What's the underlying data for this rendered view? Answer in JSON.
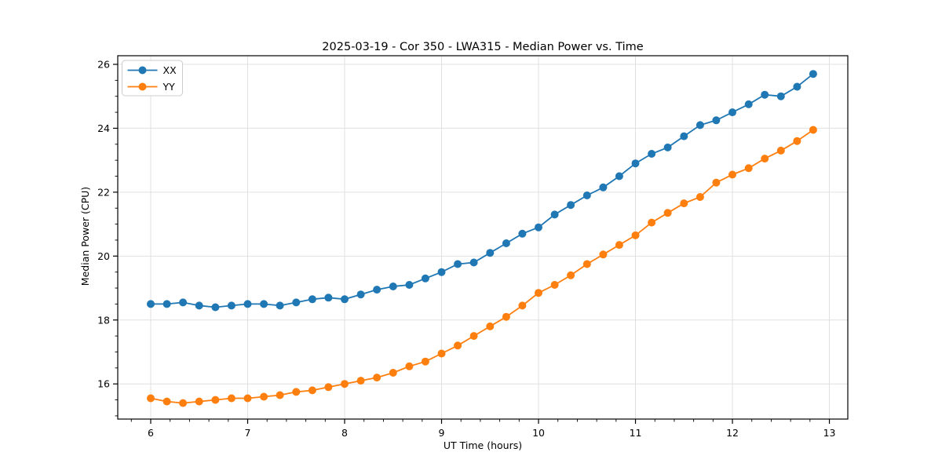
{
  "chart_data": {
    "type": "line",
    "title": "2025-03-19 - Cor 350 - LWA315 - Median Power vs. Time",
    "xlabel": "UT Time (hours)",
    "ylabel": "Median Power (CPU)",
    "xlim": [
      5.66,
      13.19
    ],
    "ylim": [
      14.9,
      26.27
    ],
    "x_major_ticks": [
      6,
      7,
      8,
      9,
      10,
      11,
      12,
      13
    ],
    "y_major_ticks": [
      16,
      18,
      20,
      22,
      24,
      26
    ],
    "x_minor_step": 0.2,
    "y_minor_step": 0.5,
    "grid": "major",
    "grid_color": "#e0e0e0",
    "legend_position": "upper-left",
    "x": [
      6.0,
      6.167,
      6.333,
      6.5,
      6.667,
      6.833,
      7.0,
      7.167,
      7.333,
      7.5,
      7.667,
      7.833,
      8.0,
      8.167,
      8.333,
      8.5,
      8.667,
      8.833,
      9.0,
      9.167,
      9.333,
      9.5,
      9.667,
      9.833,
      10.0,
      10.167,
      10.333,
      10.5,
      10.667,
      10.833,
      11.0,
      11.167,
      11.333,
      11.5,
      11.667,
      11.833,
      12.0,
      12.167,
      12.333,
      12.5,
      12.667,
      12.833
    ],
    "series": [
      {
        "name": "XX",
        "color": "#1f77b4",
        "values": [
          18.5,
          18.5,
          18.55,
          18.45,
          18.4,
          18.45,
          18.5,
          18.5,
          18.45,
          18.55,
          18.65,
          18.7,
          18.65,
          18.8,
          18.95,
          19.05,
          19.1,
          19.3,
          19.5,
          19.75,
          19.8,
          20.1,
          20.4,
          20.7,
          20.9,
          21.3,
          21.6,
          21.9,
          22.15,
          22.5,
          22.9,
          23.2,
          23.4,
          23.75,
          24.1,
          24.25,
          24.5,
          24.75,
          25.05,
          25.0,
          25.3,
          25.7
        ]
      },
      {
        "name": "YY",
        "color": "#ff7f0e",
        "values": [
          15.55,
          15.45,
          15.4,
          15.45,
          15.5,
          15.55,
          15.55,
          15.6,
          15.65,
          15.75,
          15.8,
          15.9,
          16.0,
          16.1,
          16.2,
          16.35,
          16.55,
          16.7,
          16.95,
          17.2,
          17.5,
          17.8,
          18.1,
          18.45,
          18.85,
          19.1,
          19.4,
          19.75,
          20.05,
          20.35,
          20.65,
          21.05,
          21.35,
          21.65,
          21.85,
          22.3,
          22.55,
          22.75,
          23.05,
          23.3,
          23.6,
          23.95
        ]
      }
    ]
  }
}
